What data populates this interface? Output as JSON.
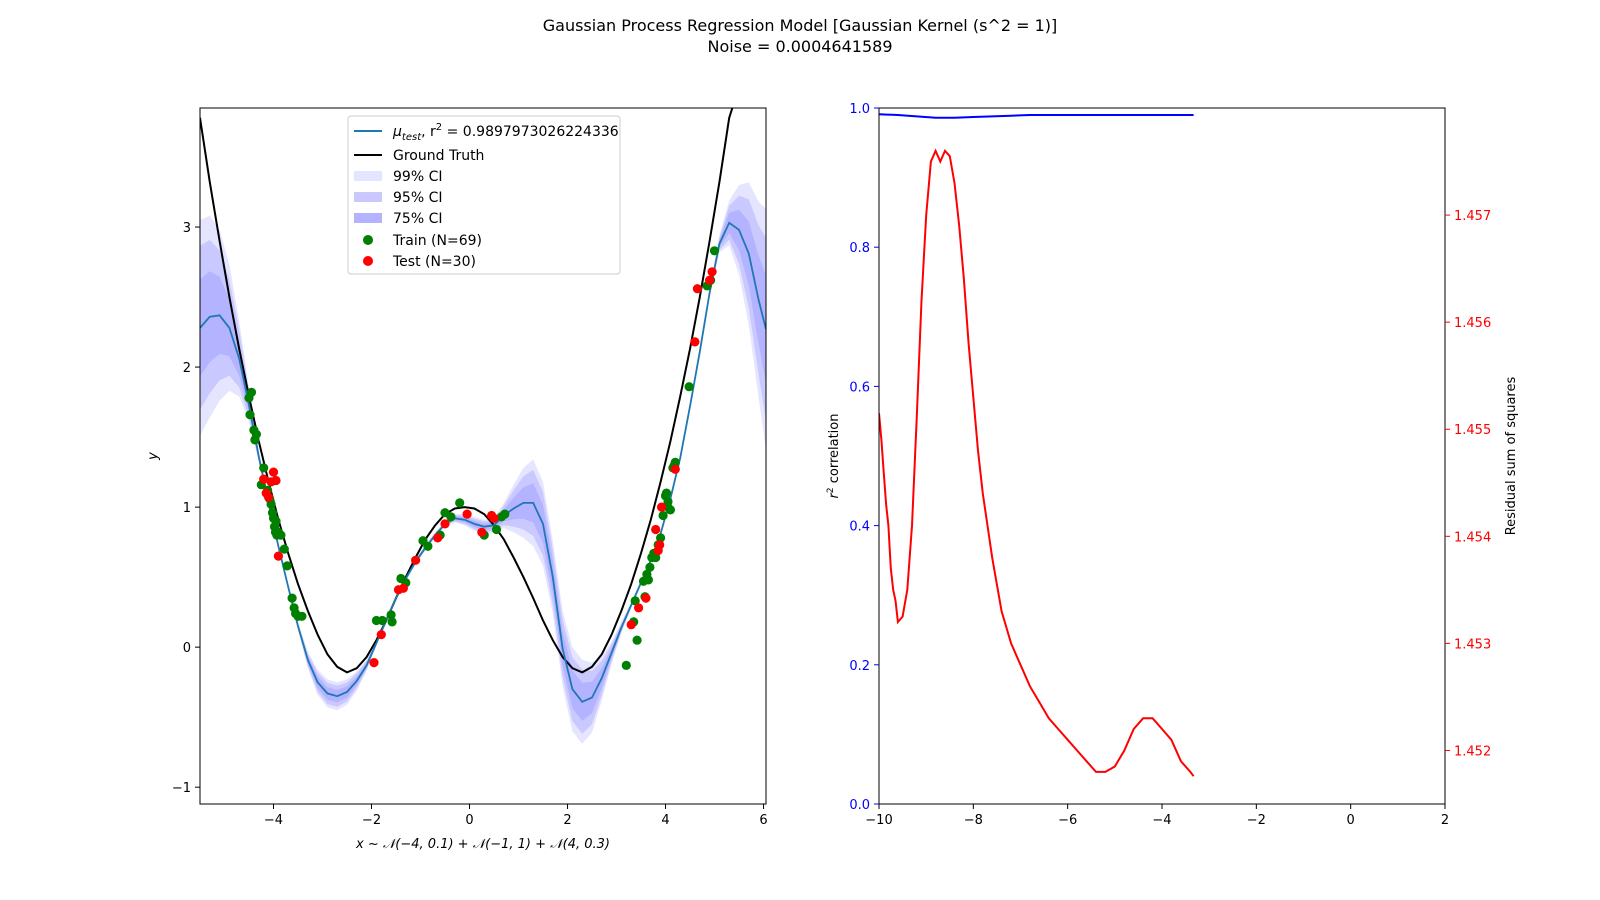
{
  "figure": {
    "title_line1": "Gaussian Process Regression Model [Gaussian Kernel (s^2 = 1)]",
    "title_line2": "Noise = 0.0004641589"
  },
  "chart_data": [
    {
      "type": "line",
      "panel": "left",
      "xlabel": "x ~ 𝒩(−4, 0.1) + 𝒩(−1, 1) + 𝒩(4, 0.3)",
      "ylabel": "y",
      "xlim": [
        -5.5,
        6.05
      ],
      "ylim": [
        -1.12,
        3.85
      ],
      "xticks": [
        -4,
        -2,
        0,
        2,
        4,
        6
      ],
      "yticks": [
        -1,
        0,
        1,
        2,
        3
      ],
      "grid": false,
      "legend_position": "upper-center",
      "legend": {
        "mu_name": "μ",
        "mu_sub": "test",
        "mu_rest": ", r",
        "mu_sup": "2",
        "mu_value": " = 0.9897973026224336",
        "ground_truth": "Ground Truth",
        "ci99": "99% CI",
        "ci95": "95% CI",
        "ci75": "75% CI",
        "train": "Train (N=69)",
        "test": "Test (N=30)"
      },
      "mean_x": [
        -5.5,
        -5.3,
        -5.1,
        -4.9,
        -4.7,
        -4.5,
        -4.3,
        -4.1,
        -3.9,
        -3.7,
        -3.5,
        -3.3,
        -3.1,
        -2.9,
        -2.7,
        -2.5,
        -2.3,
        -2.1,
        -1.9,
        -1.7,
        -1.5,
        -1.3,
        -1.1,
        -0.9,
        -0.7,
        -0.5,
        -0.3,
        -0.1,
        0.1,
        0.3,
        0.5,
        0.7,
        0.9,
        1.1,
        1.3,
        1.5,
        1.7,
        1.9,
        2.1,
        2.3,
        2.5,
        2.7,
        2.9,
        3.1,
        3.3,
        3.5,
        3.7,
        3.9,
        4.1,
        4.3,
        4.5,
        4.7,
        4.9,
        5.1,
        5.3,
        5.5,
        5.7,
        5.9,
        6.05
      ],
      "mean_y": [
        2.28,
        2.36,
        2.37,
        2.28,
        2.06,
        1.73,
        1.36,
        1.03,
        0.72,
        0.43,
        0.15,
        -0.09,
        -0.25,
        -0.33,
        -0.35,
        -0.32,
        -0.24,
        -0.13,
        0.03,
        0.19,
        0.35,
        0.49,
        0.61,
        0.71,
        0.8,
        0.88,
        0.92,
        0.91,
        0.88,
        0.86,
        0.87,
        0.94,
        0.99,
        1.03,
        1.03,
        0.88,
        0.5,
        -0.01,
        -0.3,
        -0.39,
        -0.36,
        -0.22,
        -0.04,
        0.14,
        0.3,
        0.46,
        0.62,
        0.81,
        1.06,
        1.35,
        1.72,
        2.11,
        2.53,
        2.88,
        3.03,
        2.98,
        2.81,
        2.48,
        2.27
      ],
      "ci_halfwidth_99": [
        0.77,
        0.72,
        0.61,
        0.45,
        0.27,
        0.12,
        0.04,
        0.02,
        0.02,
        0.02,
        0.03,
        0.06,
        0.09,
        0.1,
        0.1,
        0.09,
        0.07,
        0.04,
        0.02,
        0.02,
        0.02,
        0.02,
        0.02,
        0.02,
        0.02,
        0.02,
        0.03,
        0.04,
        0.05,
        0.05,
        0.05,
        0.09,
        0.17,
        0.25,
        0.31,
        0.3,
        0.26,
        0.27,
        0.3,
        0.3,
        0.25,
        0.16,
        0.08,
        0.04,
        0.02,
        0.02,
        0.02,
        0.02,
        0.02,
        0.02,
        0.03,
        0.03,
        0.03,
        0.06,
        0.16,
        0.32,
        0.51,
        0.7,
        0.86
      ],
      "ground_truth_x": [
        -5.5,
        -5.3,
        -5.1,
        -4.9,
        -4.7,
        -4.5,
        -4.3,
        -4.1,
        -3.9,
        -3.7,
        -3.5,
        -3.3,
        -3.1,
        -2.9,
        -2.7,
        -2.5,
        -2.3,
        -2.1,
        -1.9,
        -1.7,
        -1.5,
        -1.3,
        -1.1,
        -0.9,
        -0.7,
        -0.5,
        -0.3,
        -0.1,
        0.1,
        0.3,
        0.5,
        0.7,
        0.9,
        1.1,
        1.3,
        1.5,
        1.7,
        1.9,
        2.1,
        2.3,
        2.5,
        2.7,
        2.9,
        3.1,
        3.3,
        3.5,
        3.7,
        3.9,
        4.1,
        4.3,
        4.5,
        4.7,
        4.9,
        5.1,
        5.3,
        5.5
      ],
      "ground_truth_y": [
        3.78,
        3.32,
        2.9,
        2.5,
        2.13,
        1.79,
        1.47,
        1.18,
        0.91,
        0.67,
        0.45,
        0.26,
        0.09,
        -0.05,
        -0.14,
        -0.18,
        -0.15,
        -0.07,
        0.05,
        0.19,
        0.35,
        0.5,
        0.64,
        0.77,
        0.87,
        0.95,
        0.99,
        1.0,
        0.99,
        0.95,
        0.87,
        0.77,
        0.64,
        0.5,
        0.35,
        0.19,
        0.05,
        -0.07,
        -0.15,
        -0.18,
        -0.14,
        -0.05,
        0.09,
        0.26,
        0.45,
        0.67,
        0.91,
        1.18,
        1.47,
        1.79,
        2.13,
        2.5,
        2.9,
        3.32,
        3.78,
        4.0
      ],
      "train_x": [
        -4.5,
        -4.45,
        -4.48,
        -4.38,
        -4.35,
        -4.25,
        -4.2,
        -4.12,
        -4.08,
        -4.05,
        -4.02,
        -4.0,
        -3.98,
        -3.96,
        -3.93,
        -3.9,
        -3.85,
        -3.78,
        -3.72,
        -3.62,
        -3.58,
        -3.55,
        -3.5,
        -3.42,
        -1.9,
        -1.78,
        -1.6,
        -1.58,
        -1.4,
        -1.3,
        -0.95,
        -0.85,
        -0.6,
        -0.5,
        -0.38,
        -0.2,
        0.3,
        0.55,
        0.65,
        0.72,
        3.2,
        3.35,
        3.38,
        3.42,
        3.55,
        3.58,
        3.62,
        3.65,
        3.68,
        3.72,
        3.76,
        3.8,
        3.85,
        3.9,
        3.95,
        4.0,
        4.02,
        4.05,
        4.15,
        4.18,
        4.2,
        4.48,
        4.85,
        4.92,
        5.0,
        4.05,
        4.1,
        -3.95,
        -4.4
      ],
      "train_y": [
        1.78,
        1.82,
        1.66,
        1.48,
        1.52,
        1.16,
        1.28,
        1.12,
        1.06,
        1.02,
        0.96,
        0.92,
        0.86,
        0.82,
        0.8,
        0.82,
        0.8,
        0.7,
        0.58,
        0.35,
        0.28,
        0.24,
        0.22,
        0.22,
        0.19,
        0.19,
        0.23,
        0.18,
        0.49,
        0.46,
        0.76,
        0.72,
        0.8,
        0.96,
        0.93,
        1.03,
        0.8,
        0.84,
        0.93,
        0.95,
        -0.13,
        0.18,
        0.33,
        0.05,
        0.47,
        0.36,
        0.52,
        0.48,
        0.57,
        0.64,
        0.67,
        0.64,
        0.73,
        0.78,
        0.94,
        1.08,
        1.1,
        1.04,
        1.28,
        1.3,
        1.32,
        1.86,
        2.58,
        2.62,
        2.83,
        1.0,
        0.98,
        0.9,
        1.55
      ],
      "test_x": [
        -4.2,
        -4.15,
        -4.1,
        -4.05,
        -4.0,
        -3.95,
        -3.9,
        -1.95,
        -1.8,
        -1.45,
        -1.35,
        -1.1,
        -0.65,
        -0.5,
        -0.05,
        0.25,
        0.45,
        0.5,
        3.3,
        3.45,
        3.6,
        3.8,
        3.85,
        3.88,
        3.92,
        4.2,
        4.6,
        4.65,
        4.9,
        4.95
      ],
      "test_y": [
        1.2,
        1.1,
        1.07,
        1.18,
        1.25,
        1.19,
        0.65,
        -0.11,
        0.09,
        0.41,
        0.42,
        0.62,
        0.78,
        0.88,
        0.95,
        0.82,
        0.94,
        0.92,
        0.16,
        0.28,
        0.35,
        0.84,
        0.69,
        0.73,
        1.0,
        1.27,
        2.18,
        2.56,
        2.62,
        2.68
      ]
    },
    {
      "type": "line",
      "panel": "right",
      "ylabel_left_sup": "2",
      "ylabel_left_rest": " correlation",
      "ylabel_left_base": "r",
      "ylabel_right": "Residual sum of squares",
      "xlim": [
        -10,
        2
      ],
      "ylim_left": [
        0,
        1
      ],
      "ylim_right": [
        1.4515,
        1.458
      ],
      "xticks": [
        -10,
        -8,
        -6,
        -4,
        -2,
        0,
        2
      ],
      "yticks_left": [
        0.0,
        0.2,
        0.4,
        0.6,
        0.8,
        1.0
      ],
      "yticks_right": [
        1.452,
        1.453,
        1.454,
        1.455,
        1.456,
        1.457
      ],
      "series": [
        {
          "axis": "left",
          "color": "#0000ff",
          "x": [
            -10,
            -9.6,
            -9.2,
            -8.8,
            -8.4,
            -8.0,
            -7.6,
            -7.2,
            -6.8,
            -6.4,
            -6.0,
            -5.6,
            -5.2,
            -4.8,
            -4.4,
            -4.0,
            -3.6,
            -3.33
          ],
          "values": [
            0.991,
            0.99,
            0.988,
            0.986,
            0.986,
            0.987,
            0.988,
            0.989,
            0.99,
            0.99,
            0.99,
            0.99,
            0.99,
            0.99,
            0.99,
            0.99,
            0.99,
            0.99
          ]
        },
        {
          "axis": "right",
          "color": "#ff0000",
          "x": [
            -10,
            -9.95,
            -9.9,
            -9.85,
            -9.8,
            -9.75,
            -9.7,
            -9.65,
            -9.6,
            -9.5,
            -9.4,
            -9.3,
            -9.2,
            -9.1,
            -9.0,
            -8.9,
            -8.8,
            -8.7,
            -8.6,
            -8.5,
            -8.4,
            -8.3,
            -8.2,
            -8.1,
            -8.0,
            -7.9,
            -7.8,
            -7.6,
            -7.4,
            -7.2,
            -7.0,
            -6.8,
            -6.6,
            -6.4,
            -6.2,
            -6.0,
            -5.8,
            -5.6,
            -5.4,
            -5.2,
            -5.0,
            -4.8,
            -4.6,
            -4.4,
            -4.2,
            -4.0,
            -3.8,
            -3.6,
            -3.4,
            -3.33
          ],
          "values": [
            1.45515,
            1.4549,
            1.4546,
            1.4543,
            1.4541,
            1.4537,
            1.4535,
            1.4534,
            1.4532,
            1.45325,
            1.4535,
            1.4541,
            1.4551,
            1.4562,
            1.457,
            1.4575,
            1.4576,
            1.4575,
            1.4576,
            1.45755,
            1.4573,
            1.4569,
            1.4564,
            1.4558,
            1.4553,
            1.4548,
            1.4544,
            1.4538,
            1.4533,
            1.453,
            1.4528,
            1.4526,
            1.45245,
            1.4523,
            1.4522,
            1.4521,
            1.452,
            1.4519,
            1.4518,
            1.4518,
            1.45185,
            1.452,
            1.4522,
            1.4523,
            1.4523,
            1.4522,
            1.4521,
            1.4519,
            1.4518,
            1.45176
          ]
        }
      ]
    }
  ]
}
